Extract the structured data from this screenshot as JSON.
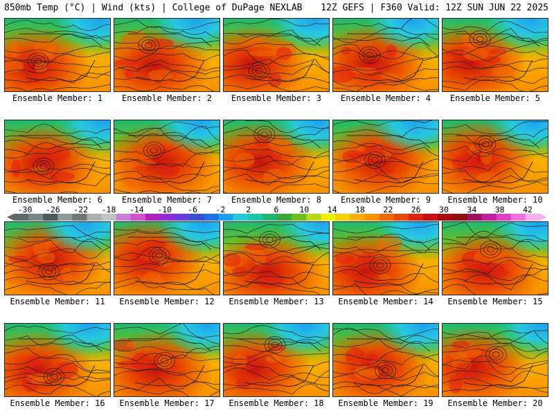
{
  "header": {
    "left": "850mb Temp (°C) | Wind (kts) | College of DuPage NEXLAB",
    "right": "12Z GEFS | F360 Valid: 12Z SUN JUN 22 2025"
  },
  "panels": [
    {
      "member": 1,
      "label": "Ensemble Member: 1"
    },
    {
      "member": 2,
      "label": "Ensemble Member: 2"
    },
    {
      "member": 3,
      "label": "Ensemble Member: 3"
    },
    {
      "member": 4,
      "label": "Ensemble Member: 4"
    },
    {
      "member": 5,
      "label": "Ensemble Member: 5"
    },
    {
      "member": 6,
      "label": "Ensemble Member: 6"
    },
    {
      "member": 7,
      "label": "Ensemble Member: 7"
    },
    {
      "member": 8,
      "label": "Ensemble Member: 8"
    },
    {
      "member": 9,
      "label": "Ensemble Member: 9"
    },
    {
      "member": 10,
      "label": "Ensemble Member: 10"
    },
    {
      "member": 11,
      "label": "Ensemble Member: 11"
    },
    {
      "member": 12,
      "label": "Ensemble Member: 12"
    },
    {
      "member": 13,
      "label": "Ensemble Member: 13"
    },
    {
      "member": 14,
      "label": "Ensemble Member: 14"
    },
    {
      "member": 15,
      "label": "Ensemble Member: 15"
    },
    {
      "member": 16,
      "label": "Ensemble Member: 16"
    },
    {
      "member": 17,
      "label": "Ensemble Member: 17"
    },
    {
      "member": 18,
      "label": "Ensemble Member: 18"
    },
    {
      "member": 19,
      "label": "Ensemble Member: 19"
    },
    {
      "member": 20,
      "label": "Ensemble Member: 20"
    }
  ],
  "colorbar": {
    "tick_labels": [
      "-30",
      "-26",
      "-22",
      "-18",
      "-14",
      "-10",
      "-6",
      "-2",
      "2",
      "6",
      "10",
      "14",
      "18",
      "22",
      "26",
      "30",
      "34",
      "38",
      "42"
    ],
    "colors": [
      "#5f6b6b",
      "#7a8585",
      "#505a5a",
      "#8f9a9a",
      "#6e7676",
      "#a9b0b0",
      "#bfc4c4",
      "#c97fd8",
      "#d24fd2",
      "#b01fc0",
      "#8d2bd8",
      "#6a3ae0",
      "#3a4fd0",
      "#1f6fe8",
      "#1ea0f0",
      "#28c8e0",
      "#18c8a8",
      "#20b870",
      "#3aa83a",
      "#6cc020",
      "#b8d818",
      "#f0f000",
      "#f8d000",
      "#f8b000",
      "#f89000",
      "#f06800",
      "#e84800",
      "#e02010",
      "#c81010",
      "#a80c0c",
      "#901010",
      "#a01060",
      "#c020a0",
      "#e040c8",
      "#f070e0",
      "#f8b0f0"
    ]
  }
}
